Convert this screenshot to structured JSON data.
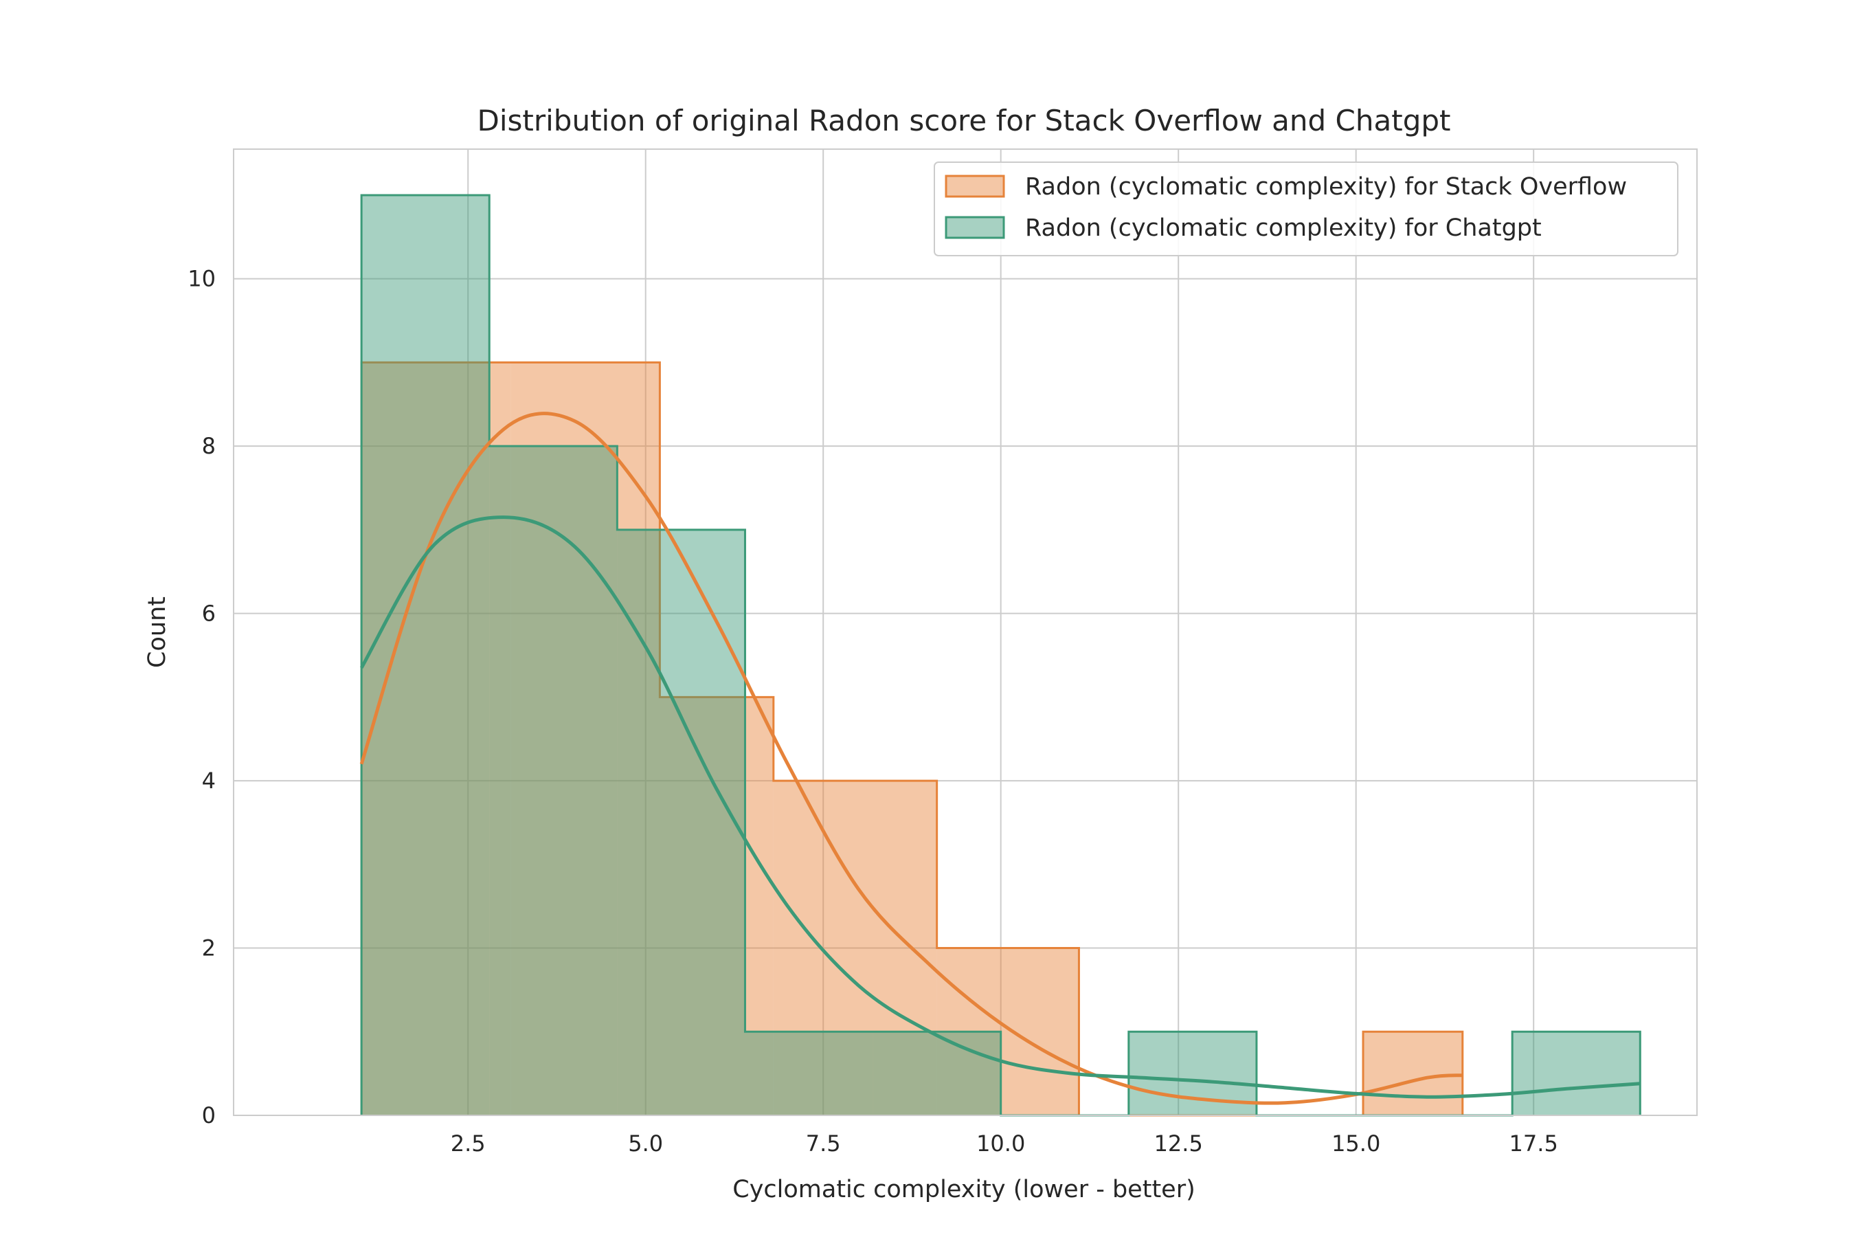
{
  "chart_data": {
    "type": "histogram",
    "title": "Distribution of original Radon score for Stack Overflow and Chatgpt",
    "xlabel": "Cyclomatic complexity (lower - better)",
    "ylabel": "Count",
    "xlim": [
      -0.8,
      19.8
    ],
    "ylim": [
      0,
      11.55
    ],
    "xticks": [
      2.5,
      5.0,
      7.5,
      10.0,
      12.5,
      15.0,
      17.5
    ],
    "xtick_labels": [
      "2.5",
      "5.0",
      "7.5",
      "10.0",
      "12.5",
      "15.0",
      "17.5"
    ],
    "yticks": [
      0,
      2,
      4,
      6,
      8,
      10
    ],
    "ytick_labels": [
      "0",
      "2",
      "4",
      "6",
      "8",
      "10"
    ],
    "grid": true,
    "legend_position": "top-right",
    "series": [
      {
        "name": "Radon (cyclomatic complexity) for Stack Overflow",
        "color": "#e6833a",
        "bin_edges": [
          1.0,
          3.1,
          5.2,
          6.8,
          9.1,
          11.1,
          13.1,
          15.1,
          16.5
        ],
        "counts": [
          9,
          9,
          5,
          4,
          2,
          0,
          0,
          1
        ],
        "kde_x": [
          1.0,
          2.0,
          3.0,
          4.0,
          5.0,
          6.0,
          7.0,
          8.0,
          9.0,
          10.0,
          11.0,
          12.0,
          13.0,
          14.0,
          15.0,
          16.0,
          16.5
        ],
        "kde_y": [
          4.2,
          6.9,
          8.2,
          8.3,
          7.4,
          5.9,
          4.2,
          2.7,
          1.8,
          1.1,
          0.6,
          0.3,
          0.18,
          0.15,
          0.25,
          0.45,
          0.48
        ]
      },
      {
        "name": "Radon (cyclomatic complexity) for Chatgpt",
        "color": "#3c9a78",
        "bin_edges": [
          1.0,
          2.8,
          4.6,
          6.4,
          8.2,
          10.0,
          11.8,
          13.6,
          15.4,
          17.2,
          19.0
        ],
        "counts": [
          11,
          8,
          7,
          1,
          1,
          0,
          1,
          0,
          0,
          1
        ],
        "kde_x": [
          1.0,
          2.0,
          3.0,
          4.0,
          5.0,
          6.0,
          7.0,
          8.0,
          9.0,
          10.0,
          11.0,
          12.0,
          13.0,
          14.0,
          15.0,
          16.0,
          17.0,
          18.0,
          19.0
        ],
        "kde_y": [
          5.35,
          6.8,
          7.15,
          6.8,
          5.6,
          3.9,
          2.5,
          1.55,
          1.0,
          0.65,
          0.5,
          0.45,
          0.4,
          0.33,
          0.26,
          0.22,
          0.25,
          0.32,
          0.38
        ]
      }
    ]
  }
}
